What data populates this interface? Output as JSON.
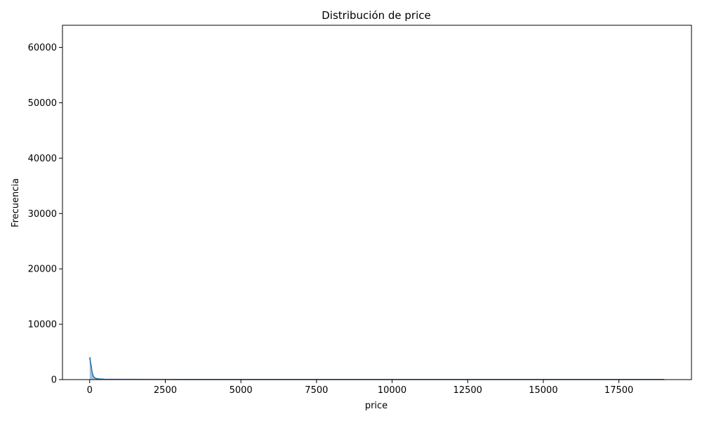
{
  "chart_data": {
    "type": "histogram",
    "title": "Distribución de price",
    "xlabel": "price",
    "ylabel": "Frecuencia",
    "xlim": [
      -900,
      19900
    ],
    "ylim": [
      0,
      64000
    ],
    "xticks": [
      0,
      2500,
      5000,
      7500,
      10000,
      12500,
      15000,
      17500
    ],
    "xtick_labels": [
      "0",
      "2500",
      "5000",
      "7500",
      "10000",
      "12500",
      "15000",
      "17500"
    ],
    "yticks": [
      0,
      10000,
      20000,
      30000,
      40000,
      50000,
      60000
    ],
    "ytick_labels": [
      "0",
      "10000",
      "20000",
      "30000",
      "40000",
      "50000",
      "60000"
    ],
    "grid": false,
    "bar_color": "#8aa8c4",
    "kde_color": "#1f77b4",
    "bins": [
      {
        "x0": 0,
        "x1": 38,
        "count": 4100
      },
      {
        "x0": 38,
        "x1": 76,
        "count": 2600
      },
      {
        "x0": 76,
        "x1": 114,
        "count": 1100
      },
      {
        "x0": 114,
        "x1": 152,
        "count": 500
      },
      {
        "x0": 152,
        "x1": 190,
        "count": 300
      },
      {
        "x0": 190,
        "x1": 228,
        "count": 180
      },
      {
        "x0": 228,
        "x1": 266,
        "count": 120
      },
      {
        "x0": 266,
        "x1": 304,
        "count": 80
      },
      {
        "x0": 304,
        "x1": 342,
        "count": 60
      },
      {
        "x0": 342,
        "x1": 380,
        "count": 40
      }
    ],
    "kde": {
      "x": [
        0,
        40,
        80,
        120,
        160,
        200,
        300,
        500,
        1000,
        2500,
        5000,
        7500,
        10000,
        12500,
        15000,
        17500,
        19000
      ],
      "y": [
        4000,
        2700,
        1300,
        600,
        350,
        220,
        120,
        60,
        40,
        30,
        25,
        20,
        20,
        20,
        20,
        20,
        20
      ]
    }
  }
}
